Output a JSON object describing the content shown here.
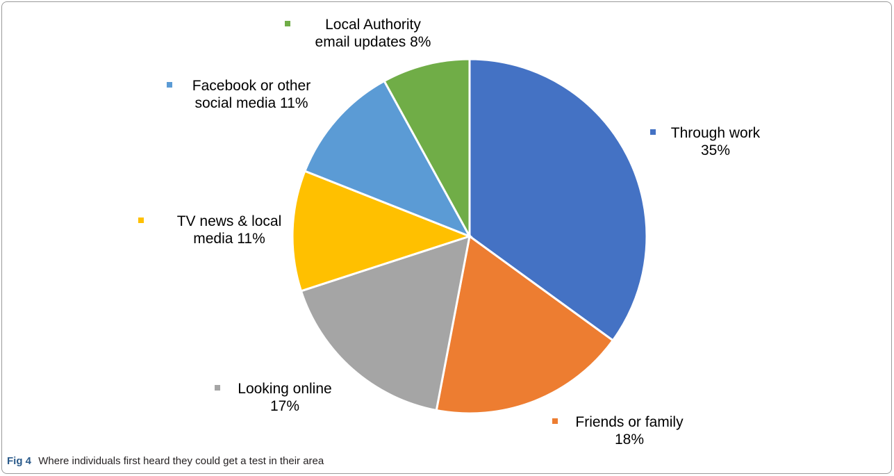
{
  "chart_data": {
    "type": "pie",
    "title": "",
    "slices": [
      {
        "line1": "Through work",
        "line2": "35%",
        "value": 35,
        "color": "#4472c4"
      },
      {
        "line1": "Friends or family",
        "line2": "18%",
        "value": 18,
        "color": "#ed7d31"
      },
      {
        "line1": "Looking online",
        "line2": "17%",
        "value": 17,
        "color": "#a5a5a5"
      },
      {
        "line1": "TV news & local",
        "line2": "media 11%",
        "value": 11,
        "color": "#ffc000"
      },
      {
        "line1": "Facebook or other",
        "line2": "social media 11%",
        "value": 11,
        "color": "#5b9bd5"
      },
      {
        "line1": "Local Authority",
        "line2": "email updates 8%",
        "value": 8,
        "color": "#70ad47"
      }
    ],
    "start_angle": "12 o'clock",
    "direction": "clockwise"
  },
  "caption": {
    "fig_label": "Fig 4",
    "text": "Where individuals first heard they could get a test in their area"
  }
}
